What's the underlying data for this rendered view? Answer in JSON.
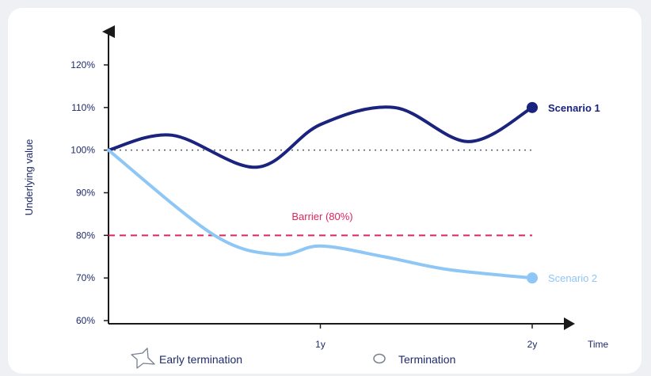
{
  "chart_data": {
    "type": "line",
    "ylabel": "Underlying value",
    "xlabel": "Time",
    "ylim": [
      60,
      120
    ],
    "y_ticks": [
      "120%",
      "110%",
      "100%",
      "90%",
      "80%",
      "70%",
      "60%"
    ],
    "y_tick_values": [
      120,
      110,
      100,
      90,
      80,
      70,
      60
    ],
    "x_ticks": [
      "1y",
      "2y"
    ],
    "x_tick_values": [
      1,
      2
    ],
    "xlim": [
      0,
      2
    ],
    "reference_line": {
      "value": 100,
      "style": "dotted"
    },
    "barrier": {
      "label": "Barrier (80%)",
      "value": 80,
      "color": "#e0245e"
    },
    "series": [
      {
        "name": "Scenario 1",
        "color": "#1a237e",
        "x": [
          0,
          0.3,
          0.7,
          1.0,
          1.35,
          1.7,
          2.0
        ],
        "values": [
          100,
          103.5,
          96,
          106,
          110,
          102,
          110
        ]
      },
      {
        "name": "Scenario 2",
        "color": "#8ec6f5",
        "x": [
          0,
          0.5,
          0.8,
          1.0,
          1.3,
          1.6,
          2.0
        ],
        "values": [
          100,
          80,
          75.5,
          77.5,
          75,
          72,
          70
        ]
      }
    ]
  },
  "legend": {
    "early_termination": {
      "label": "Early termination",
      "icon": "star-outline-icon"
    },
    "termination": {
      "label": "Termination",
      "icon": "circle-outline-icon"
    }
  }
}
